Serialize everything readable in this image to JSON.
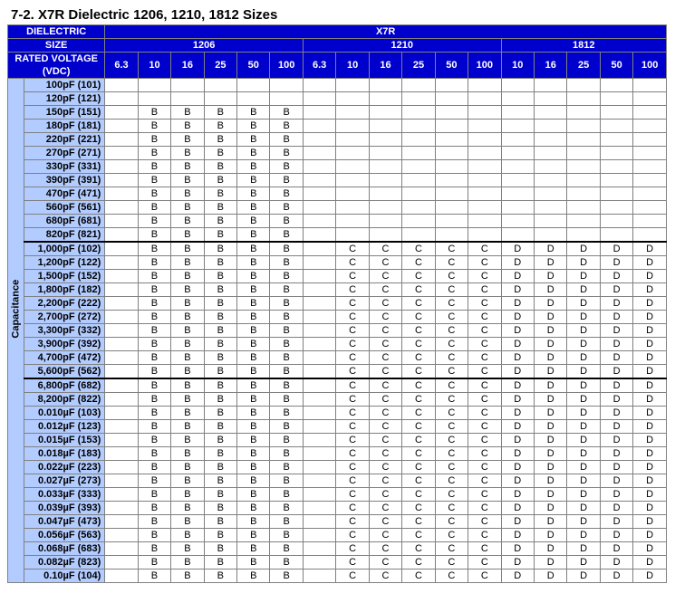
{
  "title": "7-2. X7R Dielectric 1206, 1210, 1812 Sizes",
  "headers": {
    "dielectric_label": "DIELECTRIC",
    "dielectric_value": "X7R",
    "size_label": "SIZE",
    "sizes": [
      "1206",
      "1210",
      "1812"
    ],
    "rated_voltage_label": "RATED VOLTAGE (VDC)",
    "voltages_1206": [
      "6.3",
      "10",
      "16",
      "25",
      "50",
      "100"
    ],
    "voltages_1210": [
      "6.3",
      "10",
      "16",
      "25",
      "50",
      "100"
    ],
    "voltages_1812": [
      "10",
      "16",
      "25",
      "50",
      "100"
    ],
    "capacitance_side": "Capacitance"
  },
  "thick_after": [
    12,
    22
  ],
  "rows": [
    {
      "label": "100pF (101)",
      "cells": [
        "",
        "",
        "",
        "",
        "",
        "",
        "",
        "",
        "",
        "",
        "",
        "",
        "",
        "",
        "",
        "",
        ""
      ]
    },
    {
      "label": "120pF (121)",
      "cells": [
        "",
        "",
        "",
        "",
        "",
        "",
        "",
        "",
        "",
        "",
        "",
        "",
        "",
        "",
        "",
        "",
        ""
      ]
    },
    {
      "label": "150pF (151)",
      "cells": [
        "",
        "B",
        "B",
        "B",
        "B",
        "B",
        "",
        "",
        "",
        "",
        "",
        "",
        "",
        "",
        "",
        "",
        ""
      ]
    },
    {
      "label": "180pF (181)",
      "cells": [
        "",
        "B",
        "B",
        "B",
        "B",
        "B",
        "",
        "",
        "",
        "",
        "",
        "",
        "",
        "",
        "",
        "",
        ""
      ]
    },
    {
      "label": "220pF (221)",
      "cells": [
        "",
        "B",
        "B",
        "B",
        "B",
        "B",
        "",
        "",
        "",
        "",
        "",
        "",
        "",
        "",
        "",
        "",
        ""
      ]
    },
    {
      "label": "270pF (271)",
      "cells": [
        "",
        "B",
        "B",
        "B",
        "B",
        "B",
        "",
        "",
        "",
        "",
        "",
        "",
        "",
        "",
        "",
        "",
        ""
      ]
    },
    {
      "label": "330pF (331)",
      "cells": [
        "",
        "B",
        "B",
        "B",
        "B",
        "B",
        "",
        "",
        "",
        "",
        "",
        "",
        "",
        "",
        "",
        "",
        ""
      ]
    },
    {
      "label": "390pF (391)",
      "cells": [
        "",
        "B",
        "B",
        "B",
        "B",
        "B",
        "",
        "",
        "",
        "",
        "",
        "",
        "",
        "",
        "",
        "",
        ""
      ]
    },
    {
      "label": "470pF (471)",
      "cells": [
        "",
        "B",
        "B",
        "B",
        "B",
        "B",
        "",
        "",
        "",
        "",
        "",
        "",
        "",
        "",
        "",
        "",
        ""
      ]
    },
    {
      "label": "560pF (561)",
      "cells": [
        "",
        "B",
        "B",
        "B",
        "B",
        "B",
        "",
        "",
        "",
        "",
        "",
        "",
        "",
        "",
        "",
        "",
        ""
      ]
    },
    {
      "label": "680pF (681)",
      "cells": [
        "",
        "B",
        "B",
        "B",
        "B",
        "B",
        "",
        "",
        "",
        "",
        "",
        "",
        "",
        "",
        "",
        "",
        ""
      ]
    },
    {
      "label": "820pF (821)",
      "cells": [
        "",
        "B",
        "B",
        "B",
        "B",
        "B",
        "",
        "",
        "",
        "",
        "",
        "",
        "",
        "",
        "",
        "",
        ""
      ]
    },
    {
      "label": "1,000pF (102)",
      "cells": [
        "",
        "B",
        "B",
        "B",
        "B",
        "B",
        "",
        "C",
        "C",
        "C",
        "C",
        "C",
        "D",
        "D",
        "D",
        "D",
        "D"
      ]
    },
    {
      "label": "1,200pF (122)",
      "cells": [
        "",
        "B",
        "B",
        "B",
        "B",
        "B",
        "",
        "C",
        "C",
        "C",
        "C",
        "C",
        "D",
        "D",
        "D",
        "D",
        "D"
      ]
    },
    {
      "label": "1,500pF (152)",
      "cells": [
        "",
        "B",
        "B",
        "B",
        "B",
        "B",
        "",
        "C",
        "C",
        "C",
        "C",
        "C",
        "D",
        "D",
        "D",
        "D",
        "D"
      ]
    },
    {
      "label": "1,800pF (182)",
      "cells": [
        "",
        "B",
        "B",
        "B",
        "B",
        "B",
        "",
        "C",
        "C",
        "C",
        "C",
        "C",
        "D",
        "D",
        "D",
        "D",
        "D"
      ]
    },
    {
      "label": "2,200pF (222)",
      "cells": [
        "",
        "B",
        "B",
        "B",
        "B",
        "B",
        "",
        "C",
        "C",
        "C",
        "C",
        "C",
        "D",
        "D",
        "D",
        "D",
        "D"
      ]
    },
    {
      "label": "2,700pF (272)",
      "cells": [
        "",
        "B",
        "B",
        "B",
        "B",
        "B",
        "",
        "C",
        "C",
        "C",
        "C",
        "C",
        "D",
        "D",
        "D",
        "D",
        "D"
      ]
    },
    {
      "label": "3,300pF (332)",
      "cells": [
        "",
        "B",
        "B",
        "B",
        "B",
        "B",
        "",
        "C",
        "C",
        "C",
        "C",
        "C",
        "D",
        "D",
        "D",
        "D",
        "D"
      ]
    },
    {
      "label": "3,900pF (392)",
      "cells": [
        "",
        "B",
        "B",
        "B",
        "B",
        "B",
        "",
        "C",
        "C",
        "C",
        "C",
        "C",
        "D",
        "D",
        "D",
        "D",
        "D"
      ]
    },
    {
      "label": "4,700pF (472)",
      "cells": [
        "",
        "B",
        "B",
        "B",
        "B",
        "B",
        "",
        "C",
        "C",
        "C",
        "C",
        "C",
        "D",
        "D",
        "D",
        "D",
        "D"
      ]
    },
    {
      "label": "5,600pF (562)",
      "cells": [
        "",
        "B",
        "B",
        "B",
        "B",
        "B",
        "",
        "C",
        "C",
        "C",
        "C",
        "C",
        "D",
        "D",
        "D",
        "D",
        "D"
      ]
    },
    {
      "label": "6,800pF (682)",
      "cells": [
        "",
        "B",
        "B",
        "B",
        "B",
        "B",
        "",
        "C",
        "C",
        "C",
        "C",
        "C",
        "D",
        "D",
        "D",
        "D",
        "D"
      ]
    },
    {
      "label": "8,200pF (822)",
      "cells": [
        "",
        "B",
        "B",
        "B",
        "B",
        "B",
        "",
        "C",
        "C",
        "C",
        "C",
        "C",
        "D",
        "D",
        "D",
        "D",
        "D"
      ]
    },
    {
      "label": "0.010µF (103)",
      "cells": [
        "",
        "B",
        "B",
        "B",
        "B",
        "B",
        "",
        "C",
        "C",
        "C",
        "C",
        "C",
        "D",
        "D",
        "D",
        "D",
        "D"
      ]
    },
    {
      "label": "0.012µF (123)",
      "cells": [
        "",
        "B",
        "B",
        "B",
        "B",
        "B",
        "",
        "C",
        "C",
        "C",
        "C",
        "C",
        "D",
        "D",
        "D",
        "D",
        "D"
      ]
    },
    {
      "label": "0.015µF (153)",
      "cells": [
        "",
        "B",
        "B",
        "B",
        "B",
        "B",
        "",
        "C",
        "C",
        "C",
        "C",
        "C",
        "D",
        "D",
        "D",
        "D",
        "D"
      ]
    },
    {
      "label": "0.018µF (183)",
      "cells": [
        "",
        "B",
        "B",
        "B",
        "B",
        "B",
        "",
        "C",
        "C",
        "C",
        "C",
        "C",
        "D",
        "D",
        "D",
        "D",
        "D"
      ]
    },
    {
      "label": "0.022µF (223)",
      "cells": [
        "",
        "B",
        "B",
        "B",
        "B",
        "B",
        "",
        "C",
        "C",
        "C",
        "C",
        "C",
        "D",
        "D",
        "D",
        "D",
        "D"
      ]
    },
    {
      "label": "0.027µF (273)",
      "cells": [
        "",
        "B",
        "B",
        "B",
        "B",
        "B",
        "",
        "C",
        "C",
        "C",
        "C",
        "C",
        "D",
        "D",
        "D",
        "D",
        "D"
      ]
    },
    {
      "label": "0.033µF (333)",
      "cells": [
        "",
        "B",
        "B",
        "B",
        "B",
        "B",
        "",
        "C",
        "C",
        "C",
        "C",
        "C",
        "D",
        "D",
        "D",
        "D",
        "D"
      ]
    },
    {
      "label": "0.039µF (393)",
      "cells": [
        "",
        "B",
        "B",
        "B",
        "B",
        "B",
        "",
        "C",
        "C",
        "C",
        "C",
        "C",
        "D",
        "D",
        "D",
        "D",
        "D"
      ]
    },
    {
      "label": "0.047µF (473)",
      "cells": [
        "",
        "B",
        "B",
        "B",
        "B",
        "B",
        "",
        "C",
        "C",
        "C",
        "C",
        "C",
        "D",
        "D",
        "D",
        "D",
        "D"
      ]
    },
    {
      "label": "0.056µF (563)",
      "cells": [
        "",
        "B",
        "B",
        "B",
        "B",
        "B",
        "",
        "C",
        "C",
        "C",
        "C",
        "C",
        "D",
        "D",
        "D",
        "D",
        "D"
      ]
    },
    {
      "label": "0.068µF (683)",
      "cells": [
        "",
        "B",
        "B",
        "B",
        "B",
        "B",
        "",
        "C",
        "C",
        "C",
        "C",
        "C",
        "D",
        "D",
        "D",
        "D",
        "D"
      ]
    },
    {
      "label": "0.082µF (823)",
      "cells": [
        "",
        "B",
        "B",
        "B",
        "B",
        "B",
        "",
        "C",
        "C",
        "C",
        "C",
        "C",
        "D",
        "D",
        "D",
        "D",
        "D"
      ]
    },
    {
      "label": "0.10µF (104)",
      "cells": [
        "",
        "B",
        "B",
        "B",
        "B",
        "B",
        "",
        "C",
        "C",
        "C",
        "C",
        "C",
        "D",
        "D",
        "D",
        "D",
        "D"
      ]
    }
  ]
}
